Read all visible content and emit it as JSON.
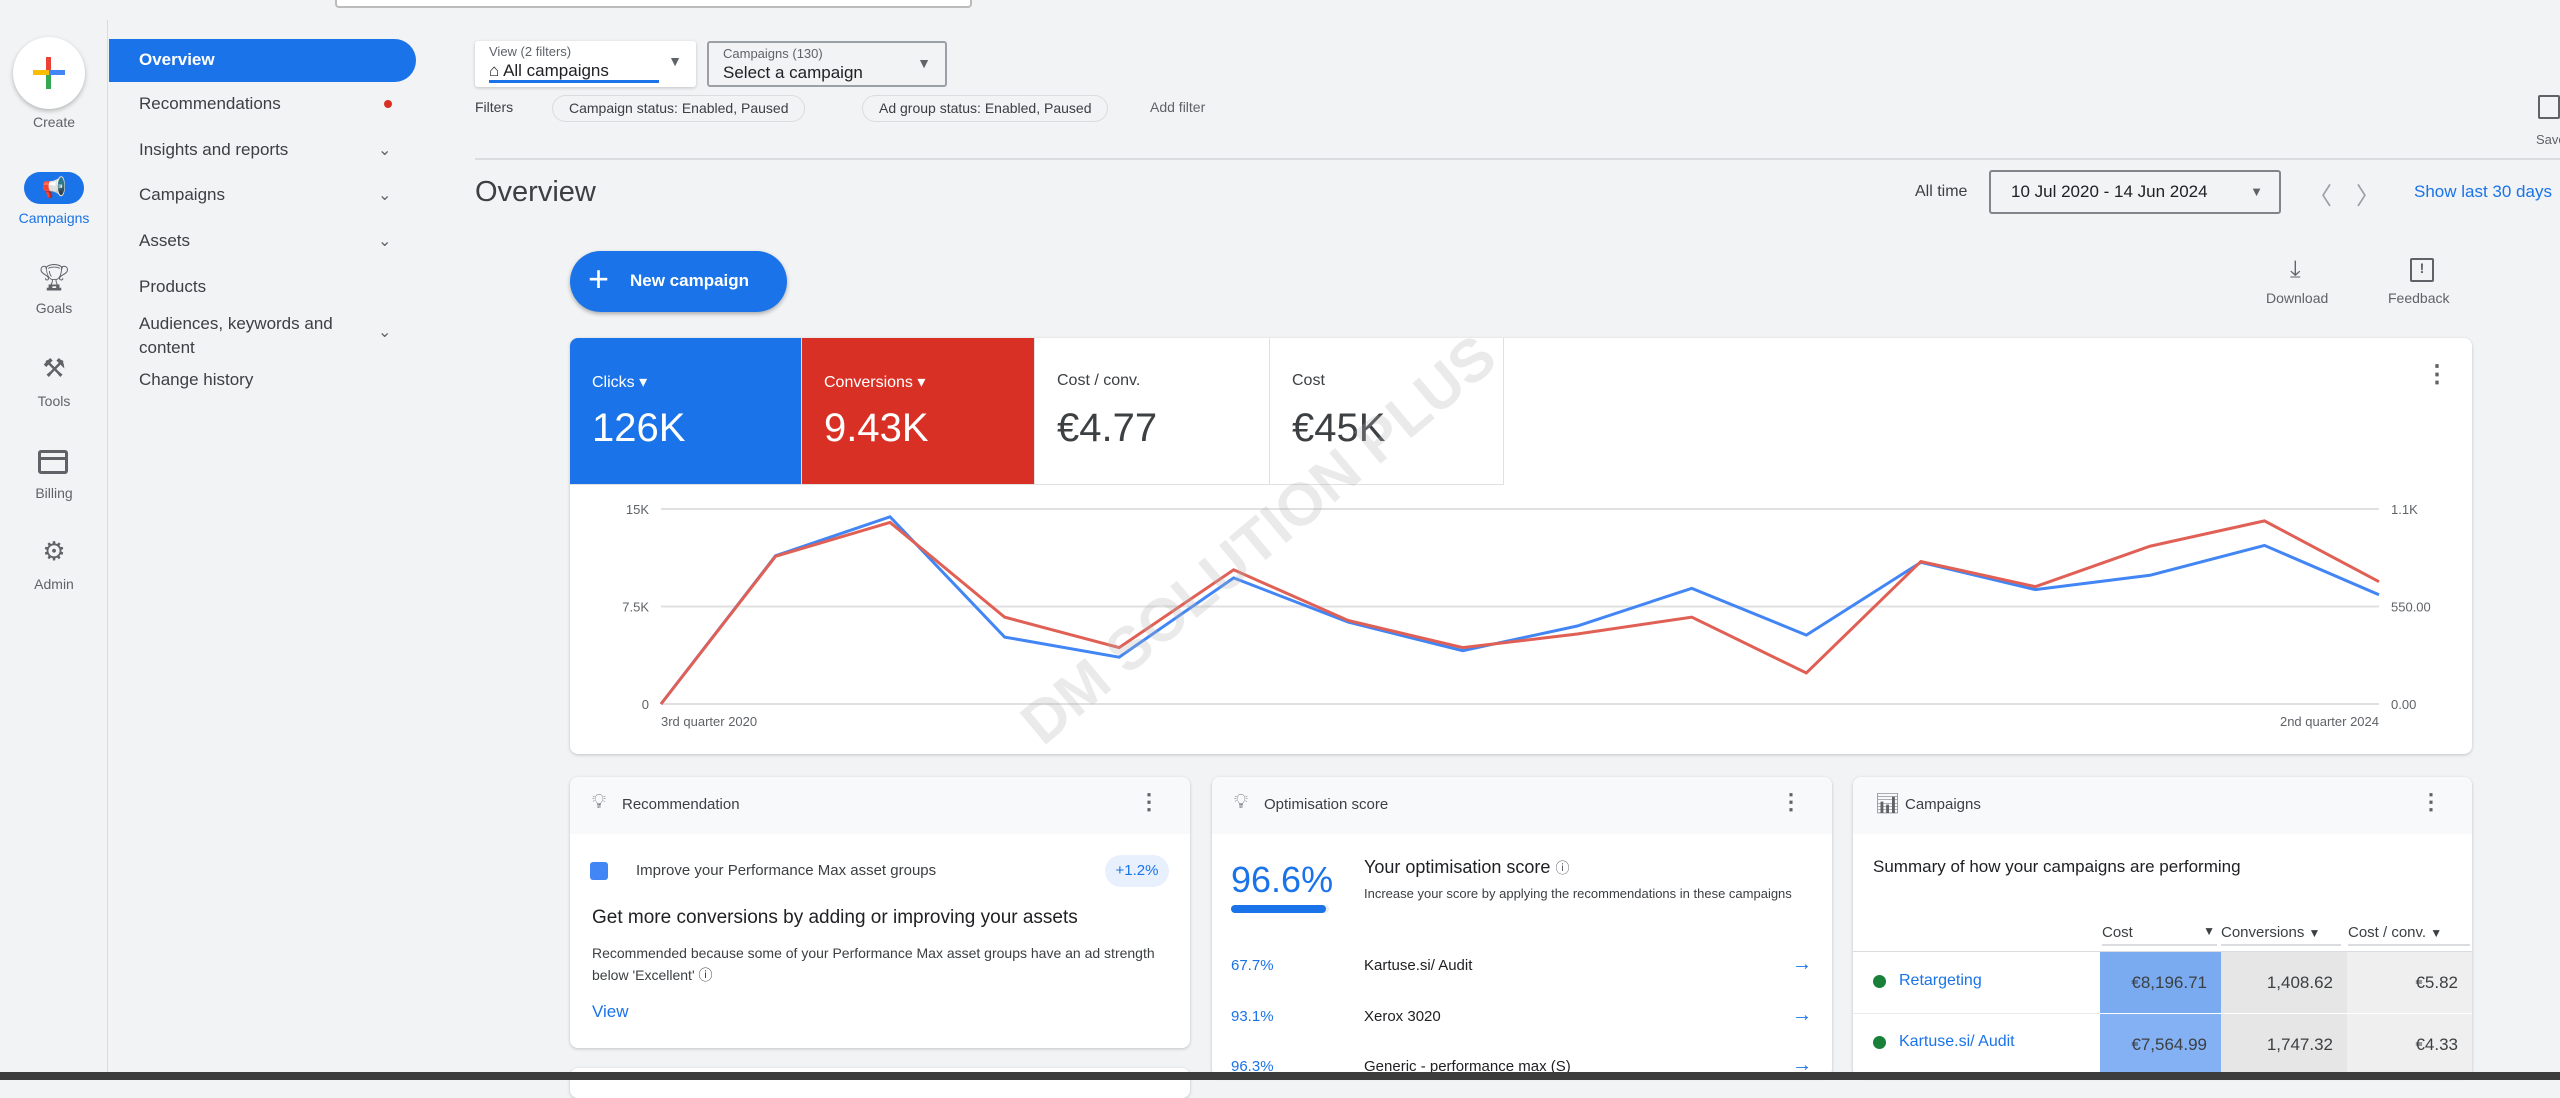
{
  "rail": {
    "create": "Create",
    "items": [
      {
        "label": "Campaigns",
        "icon": "megaphone-icon"
      },
      {
        "label": "Goals",
        "icon": "trophy-icon"
      },
      {
        "label": "Tools",
        "icon": "tools-icon"
      },
      {
        "label": "Billing",
        "icon": "credit-card-icon"
      },
      {
        "label": "Admin",
        "icon": "gear-icon"
      }
    ]
  },
  "nav": {
    "items": [
      "Overview",
      "Recommendations",
      "Insights and reports",
      "Campaigns",
      "Assets",
      "Products",
      "Audiences, keywords and content",
      "Change history"
    ]
  },
  "view": {
    "label": "View (2 filters)",
    "value": "All campaigns"
  },
  "campaign_select": {
    "label": "Campaigns (130)",
    "value": "Select a campaign"
  },
  "filters": {
    "label": "Filters",
    "chips": [
      "Campaign status: Enabled, Paused",
      "Ad group status: Enabled, Paused"
    ],
    "add": "Add filter"
  },
  "save_label": "Save",
  "page_title": "Overview",
  "date": {
    "label": "All time",
    "range": "10 Jul 2020 - 14 Jun 2024",
    "show_last": "Show last 30 days"
  },
  "new_campaign": "New campaign",
  "download": "Download",
  "feedback": "Feedback",
  "metrics": [
    {
      "label": "Clicks",
      "value": "126K",
      "color": "#1a73e8"
    },
    {
      "label": "Conversions",
      "value": "9.43K",
      "color": "#d93025"
    },
    {
      "label": "Cost / conv.",
      "value": "€4.77"
    },
    {
      "label": "Cost",
      "value": "€45K"
    }
  ],
  "watermark": "DM SOLUTION PLUS",
  "chart_data": {
    "type": "line",
    "x_tick_labels": [
      "3rd quarter 2020",
      "2nd quarter 2024"
    ],
    "left_axis": {
      "ticks": [
        "0",
        "7.5K",
        "15K"
      ],
      "range": [
        0,
        15000
      ]
    },
    "right_axis": {
      "ticks": [
        "0.00",
        "550.00",
        "1.1K"
      ],
      "range": [
        0,
        1100
      ]
    },
    "series": [
      {
        "name": "Clicks",
        "axis": "left",
        "color": "#4285f4",
        "values": [
          0,
          11400,
          14400,
          5150,
          3600,
          9700,
          6300,
          4100,
          6000,
          8900,
          5300,
          10900,
          8800,
          9900,
          12200,
          8400
        ]
      },
      {
        "name": "Conversions",
        "axis": "right",
        "color": "#e06055",
        "values": [
          0,
          833,
          1024,
          490,
          318,
          757,
          471,
          318,
          395,
          490,
          175,
          804,
          662,
          890,
          1033,
          690
        ]
      }
    ],
    "grid": true
  },
  "recommendation": {
    "title": "Recommendation",
    "item": "Improve your Performance Max asset groups",
    "badge": "+1.2%",
    "headline": "Get more conversions by adding or improving your assets",
    "reason": "Recommended because some of your Performance Max asset groups have an ad strength below 'Excellent'",
    "view": "View"
  },
  "optimisation": {
    "title": "Optimisation score",
    "score": "96.6%",
    "score_fraction": 0.966,
    "heading": "Your optimisation score",
    "desc": "Increase your score by applying the recommendations in these campaigns",
    "rows": [
      {
        "pct": "67.7%",
        "name": "Kartuse.si/ Audit"
      },
      {
        "pct": "93.1%",
        "name": "Xerox 3020"
      },
      {
        "pct": "96.3%",
        "name": "Generic - performance max (S)"
      }
    ]
  },
  "campaigns_card": {
    "title": "Campaigns",
    "summary": "Summary of how your campaigns are performing",
    "columns": [
      "Cost",
      "Conversions",
      "Cost / conv."
    ],
    "rows": [
      {
        "name": "Retargeting",
        "status_color": "#188038",
        "cost": "€8,196.71",
        "conversions": "1,408.62",
        "cost_conv": "€5.82"
      },
      {
        "name": "Kartuse.si/ Audit",
        "status_color": "#188038",
        "cost": "€7,564.99",
        "conversions": "1,747.32",
        "cost_conv": "€4.33"
      }
    ]
  }
}
